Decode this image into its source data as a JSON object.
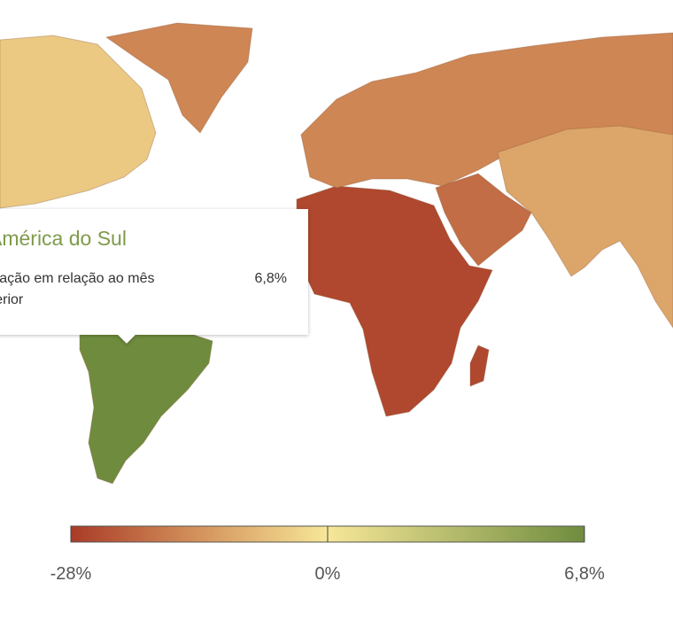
{
  "chart_data": {
    "type": "choropleth",
    "regions": [
      {
        "value": 6.8
      },
      {
        "value": -26
      },
      {
        "value": -20
      },
      {
        "value": -16
      },
      {
        "value": -16
      },
      {
        "value": -5
      },
      {
        "value": -11
      }
    ],
    "colorbar": {
      "lim": [
        -28,
        6.8
      ],
      "stops": [
        {
          "value": -28,
          "color": "#a93b27"
        },
        {
          "value": -14,
          "color": "#d4935c"
        },
        {
          "value": 0,
          "color": "#f7e798"
        },
        {
          "value": 6.8,
          "color": "#6f8c3e"
        }
      ],
      "ticks": [
        {
          "value": -28,
          "label": "-28%"
        },
        {
          "value": 0,
          "label": "0%"
        },
        {
          "value": 6.8,
          "label": "6,8%"
        }
      ]
    },
    "tooltip": {
      "title": "América do Sul",
      "label": "Variação em relação ao mês anterior",
      "value": {
        "value": 6.8,
        "label": "6,8%"
      }
    }
  }
}
